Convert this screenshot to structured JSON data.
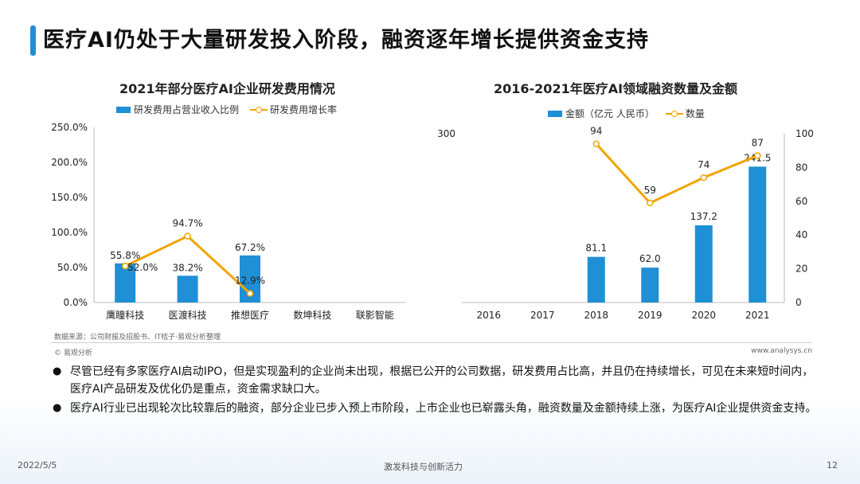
{
  "page": {
    "title": "医疗AI仍处于大量研发投入阶段，融资逐年增长提供资金支持",
    "source": "数据来源：公司财报及招股书、IT桔子·易观分析整理",
    "copyright": "© 易观分析",
    "website": "www.analysys.cn",
    "bullets": [
      "尽管已经有多家医疗AI启动IPO，但是实现盈利的企业尚未出现，根据已公开的公司数据，研发费用占比高，并且仍在持续增长，可见在未来短时间内，医疗AI产品研发及优化仍是重点，资金需求缺口大。",
      "医疗AI行业已出现轮次比较靠后的融资，部分企业已步入预上市阶段，上市企业也已崭露头角，融资数量及金额持续上涨，为医疗AI企业提供资金支持。"
    ],
    "footer": {
      "date": "2022/5/5",
      "slogan": "激发科技与创新活力",
      "page_number": "12"
    }
  },
  "colors": {
    "bar": "#1f8fd6",
    "line": "#f0a500",
    "accent": "#1f8fd6"
  },
  "chart_data": [
    {
      "type": "bar",
      "title": "2021年部分医疗AI企业研发费用情况",
      "categories": [
        "鹰瞳科技",
        "医渡科技",
        "推想医疗",
        "数坤科技",
        "联影智能"
      ],
      "y_tick_labels": [
        "250.0%",
        "200.0%",
        "150.0%",
        "100.0%",
        "50.0%",
        "0.0%"
      ],
      "ylim": [
        0,
        250
      ],
      "series": [
        {
          "name": "研发费用占营业收入比例",
          "kind": "bar",
          "values": [
            55.8,
            38.2,
            67.2,
            null,
            null
          ],
          "labels": [
            "55.8%",
            "38.2%",
            "67.2%",
            "",
            ""
          ]
        },
        {
          "name": "研发费用增长率",
          "kind": "line",
          "values": [
            52.0,
            94.7,
            12.9,
            null,
            null
          ],
          "labels": [
            "52.0%",
            "94.7%",
            "12.9%",
            "",
            ""
          ]
        }
      ]
    },
    {
      "type": "bar",
      "title": "2016-2021年医疗AI领域融资数量及金额",
      "categories": [
        "2016",
        "2017",
        "2018",
        "2019",
        "2020",
        "2021"
      ],
      "left_tick_label": "300",
      "right_tick_labels": [
        "100",
        "80",
        "60",
        "40",
        "20",
        "0"
      ],
      "ylim_left": [
        0,
        300
      ],
      "ylim_right": [
        0,
        100
      ],
      "series": [
        {
          "name": "金额（亿元 人民币）",
          "kind": "bar",
          "axis": "left",
          "values": [
            null,
            null,
            81.1,
            62.0,
            137.2,
            241.5
          ],
          "labels": [
            "",
            "",
            "81.1",
            "62.0",
            "137.2",
            "241.5"
          ]
        },
        {
          "name": "数量",
          "kind": "line",
          "axis": "right",
          "values": [
            null,
            null,
            94,
            59,
            74,
            87
          ],
          "labels": [
            "",
            "",
            "94",
            "59",
            "74",
            "87"
          ]
        }
      ]
    }
  ]
}
